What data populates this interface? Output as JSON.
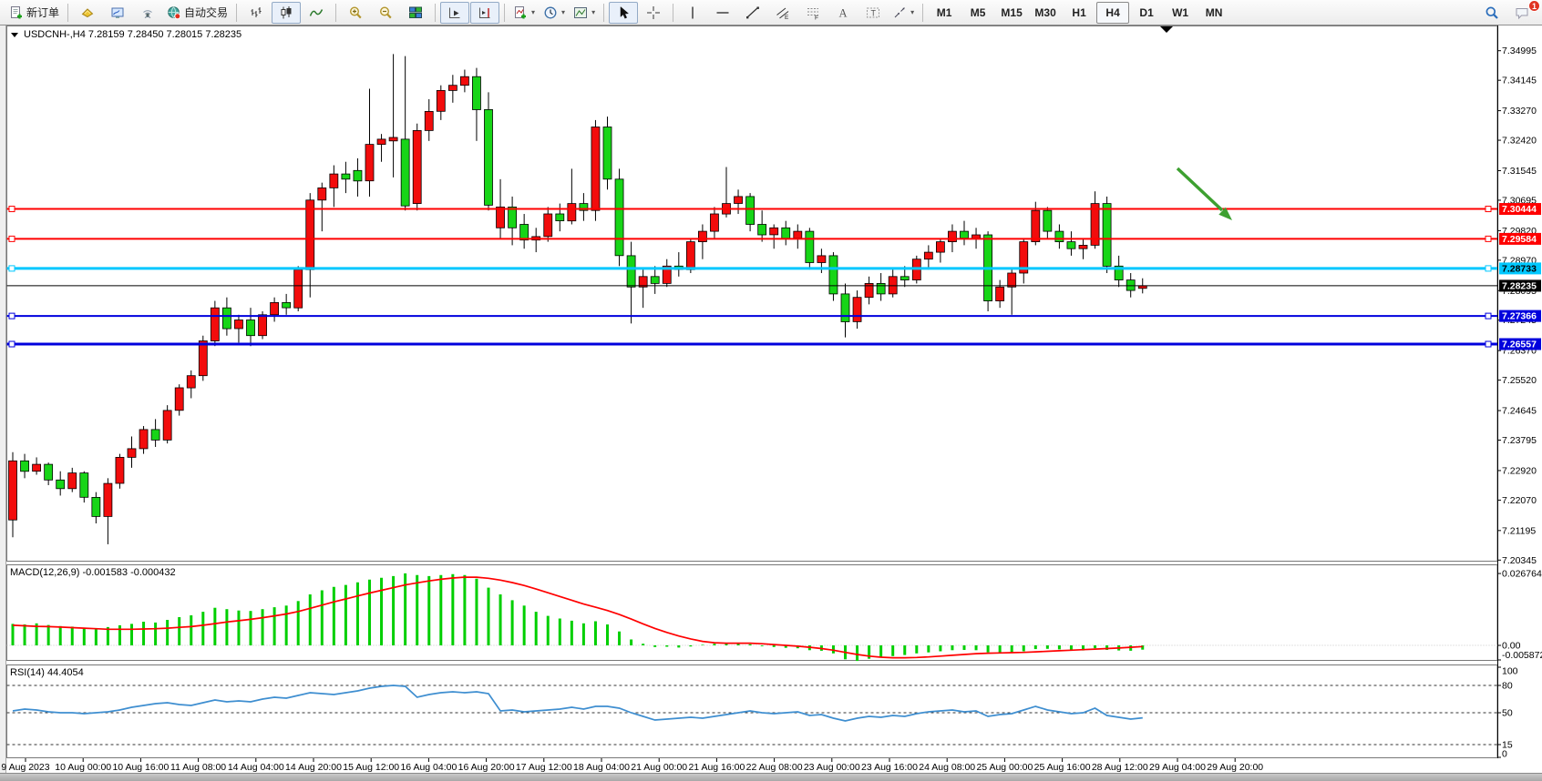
{
  "toolbar": {
    "items": [
      {
        "name": "new-order-button",
        "glyph": "new-order",
        "label": "新订单"
      },
      {
        "sep": true
      },
      {
        "name": "new-chart-button",
        "glyph": "gold"
      },
      {
        "name": "market-watch-button",
        "glyph": "monitor"
      },
      {
        "name": "signals-button",
        "glyph": "signal"
      },
      {
        "name": "autotrading-button",
        "glyph": "globe",
        "label": "自动交易"
      },
      {
        "sep": true
      },
      {
        "name": "bar-chart-button",
        "glyph": "bars"
      },
      {
        "name": "candlestick-chart-button",
        "glyph": "candles",
        "active": true
      },
      {
        "name": "line-chart-button",
        "glyph": "linechart"
      },
      {
        "sep": true
      },
      {
        "name": "zoom-in-button",
        "glyph": "zoom-in"
      },
      {
        "name": "zoom-out-button",
        "glyph": "zoom-out"
      },
      {
        "name": "tile-windows-button",
        "glyph": "tiles"
      },
      {
        "sep": true
      },
      {
        "name": "auto-scroll-button",
        "glyph": "autoscroll",
        "active": true
      },
      {
        "name": "chart-shift-button",
        "glyph": "chartshift",
        "active": true
      },
      {
        "sep": true
      },
      {
        "name": "indicators-button",
        "glyph": "indicator",
        "dropdown": true
      },
      {
        "name": "periods-button",
        "glyph": "clock",
        "dropdown": true
      },
      {
        "name": "templates-button",
        "glyph": "template",
        "dropdown": true
      },
      {
        "sep": true
      },
      {
        "name": "cursor-button",
        "glyph": "cursor",
        "active": true
      },
      {
        "name": "crosshair-button",
        "glyph": "crosshair"
      },
      {
        "sep": true
      },
      {
        "name": "vertical-line-button",
        "glyph": "vline"
      },
      {
        "name": "horizontal-line-button",
        "glyph": "hline"
      },
      {
        "name": "trendline-button",
        "glyph": "trendline"
      },
      {
        "name": "equidistant-channel-button",
        "glyph": "channel"
      },
      {
        "name": "fibonacci-button",
        "glyph": "fibo"
      },
      {
        "name": "text-button",
        "glyph": "textA"
      },
      {
        "name": "text-label-button",
        "glyph": "textT"
      },
      {
        "name": "arrows-button",
        "glyph": "arrows",
        "dropdown": true
      },
      {
        "sep": true
      },
      {
        "name": "timeframe-M1",
        "label": "M1",
        "tf": true
      },
      {
        "name": "timeframe-M5",
        "label": "M5",
        "tf": true
      },
      {
        "name": "timeframe-M15",
        "label": "M15",
        "tf": true
      },
      {
        "name": "timeframe-M30",
        "label": "M30",
        "tf": true
      },
      {
        "name": "timeframe-H1",
        "label": "H1",
        "tf": true
      },
      {
        "name": "timeframe-H4",
        "label": "H4",
        "tf": true,
        "active": true
      },
      {
        "name": "timeframe-D1",
        "label": "D1",
        "tf": true
      },
      {
        "name": "timeframe-W1",
        "label": "W1",
        "tf": true
      },
      {
        "name": "timeframe-MN",
        "label": "MN",
        "tf": true
      },
      {
        "spacer": true
      },
      {
        "name": "search-button",
        "glyph": "search"
      },
      {
        "name": "notifications-button",
        "glyph": "chat",
        "badge": "1"
      }
    ]
  },
  "chart_header": {
    "text": "USDCNH-,H4  7.28159 7.28450 7.28015 7.28235"
  },
  "chart_data": [
    {
      "type": "candlestick",
      "title": "USDCNH-,H4",
      "open": "7.28159",
      "high": "7.28450",
      "low": "7.28015",
      "close": "7.28235",
      "bull_color": "#f20c0c",
      "bear_color": "#17d517",
      "arrow": {
        "color": "#3da030",
        "direction": "down-right"
      },
      "y_ticks": [
        "7.34995",
        "7.34145",
        "7.33270",
        "7.32420",
        "7.31545",
        "7.30695",
        "7.29820",
        "7.28970",
        "7.28095",
        "7.27245",
        "7.26370",
        "7.25520",
        "7.24645",
        "7.23795",
        "7.22920",
        "7.22070",
        "7.21195",
        "7.20345"
      ],
      "x_labels": [
        "9 Aug 2023",
        "10 Aug 00:00",
        "10 Aug 16:00",
        "11 Aug 08:00",
        "14 Aug 04:00",
        "14 Aug 20:00",
        "15 Aug 12:00",
        "16 Aug 04:00",
        "16 Aug 20:00",
        "17 Aug 12:00",
        "18 Aug 04:00",
        "21 Aug 00:00",
        "21 Aug 16:00",
        "22 Aug 08:00",
        "23 Aug 00:00",
        "23 Aug 16:00",
        "24 Aug 08:00",
        "25 Aug 00:00",
        "25 Aug 16:00",
        "28 Aug 12:00",
        "29 Aug 04:00",
        "29 Aug 20:00"
      ],
      "hlines": [
        {
          "label": "7.30444",
          "value": 7.30444,
          "color": "#ff0000",
          "text_color": "#ffffff",
          "width": 2
        },
        {
          "label": "7.29584",
          "value": 7.29584,
          "color": "#ff0000",
          "text_color": "#ffffff",
          "width": 2
        },
        {
          "label": "7.28733",
          "value": 7.28733,
          "color": "#00c8ff",
          "text_color": "#000000",
          "width": 3
        },
        {
          "label": "7.28235",
          "value": 7.28235,
          "color": "#000000",
          "text_color": "#ffffff",
          "width": 1,
          "is_price": true
        },
        {
          "label": "7.27366",
          "value": 7.27366,
          "color": "#0000dd",
          "text_color": "#ffffff",
          "width": 2
        },
        {
          "label": "7.26557",
          "value": 7.26557,
          "color": "#0000dd",
          "text_color": "#ffffff",
          "width": 3
        }
      ],
      "candles": [
        [
          7.215,
          7.2345,
          7.21,
          7.232
        ],
        [
          7.232,
          7.234,
          7.227,
          7.229
        ],
        [
          7.229,
          7.233,
          7.228,
          7.231
        ],
        [
          7.231,
          7.2315,
          7.225,
          7.2265
        ],
        [
          7.2265,
          7.229,
          7.222,
          7.224
        ],
        [
          7.224,
          7.23,
          7.223,
          7.2285
        ],
        [
          7.2285,
          7.229,
          7.22,
          7.2215
        ],
        [
          7.2215,
          7.223,
          7.214,
          7.216
        ],
        [
          7.216,
          7.227,
          7.208,
          7.2255
        ],
        [
          7.2255,
          7.234,
          7.224,
          7.233
        ],
        [
          7.233,
          7.239,
          7.23,
          7.2355
        ],
        [
          7.2355,
          7.242,
          7.234,
          7.241
        ],
        [
          7.241,
          7.244,
          7.236,
          7.238
        ],
        [
          7.238,
          7.248,
          7.237,
          7.2465
        ],
        [
          7.2465,
          7.254,
          7.245,
          7.253
        ],
        [
          7.253,
          7.258,
          7.25,
          7.2565
        ],
        [
          7.2565,
          7.268,
          7.255,
          7.2665
        ],
        [
          7.2665,
          7.278,
          7.265,
          7.276
        ],
        [
          7.276,
          7.279,
          7.268,
          7.27
        ],
        [
          7.27,
          7.274,
          7.266,
          7.2725
        ],
        [
          7.2725,
          7.276,
          7.265,
          7.268
        ],
        [
          7.268,
          7.275,
          7.267,
          7.274
        ],
        [
          7.274,
          7.279,
          7.272,
          7.2775
        ],
        [
          7.2775,
          7.28,
          7.274,
          7.276
        ],
        [
          7.276,
          7.288,
          7.275,
          7.287
        ],
        [
          7.287,
          7.309,
          7.279,
          7.307
        ],
        [
          7.307,
          7.312,
          7.298,
          7.3105
        ],
        [
          7.3105,
          7.317,
          7.305,
          7.3145
        ],
        [
          7.3145,
          7.318,
          7.309,
          7.313
        ],
        [
          7.3155,
          7.319,
          7.308,
          7.3125
        ],
        [
          7.3125,
          7.339,
          7.308,
          7.323
        ],
        [
          7.323,
          7.326,
          7.318,
          7.3245
        ],
        [
          7.324,
          7.349,
          7.3135,
          7.325
        ],
        [
          7.3245,
          7.3484,
          7.304,
          7.3053
        ],
        [
          7.306,
          7.329,
          7.304,
          7.327
        ],
        [
          7.327,
          7.336,
          7.324,
          7.3325
        ],
        [
          7.3325,
          7.34,
          7.33,
          7.3385
        ],
        [
          7.3385,
          7.343,
          7.335,
          7.34
        ],
        [
          7.34,
          7.3445,
          7.338,
          7.3425
        ],
        [
          7.3425,
          7.345,
          7.324,
          7.333
        ],
        [
          7.333,
          7.338,
          7.304,
          7.3055
        ],
        [
          7.299,
          7.313,
          7.296,
          7.305
        ],
        [
          7.305,
          7.308,
          7.294,
          7.299
        ],
        [
          7.3,
          7.303,
          7.293,
          7.2955
        ],
        [
          7.2955,
          7.299,
          7.292,
          7.2965
        ],
        [
          7.2965,
          7.305,
          7.295,
          7.303
        ],
        [
          7.303,
          7.306,
          7.298,
          7.301
        ],
        [
          7.301,
          7.316,
          7.3,
          7.306
        ],
        [
          7.306,
          7.309,
          7.301,
          7.304
        ],
        [
          7.304,
          7.33,
          7.301,
          7.328
        ],
        [
          7.328,
          7.331,
          7.31,
          7.313
        ],
        [
          7.313,
          7.316,
          7.288,
          7.291
        ],
        [
          7.291,
          7.295,
          7.2715,
          7.282
        ],
        [
          7.282,
          7.287,
          7.276,
          7.285
        ],
        [
          7.285,
          7.288,
          7.28,
          7.283
        ],
        [
          7.283,
          7.29,
          7.282,
          7.288
        ],
        [
          7.288,
          7.292,
          7.285,
          7.287
        ],
        [
          7.287,
          7.296,
          7.286,
          7.295
        ],
        [
          7.295,
          7.3,
          7.29,
          7.298
        ],
        [
          7.298,
          7.305,
          7.296,
          7.303
        ],
        [
          7.303,
          7.3165,
          7.302,
          7.306
        ],
        [
          7.306,
          7.31,
          7.303,
          7.308
        ],
        [
          7.308,
          7.309,
          7.298,
          7.3
        ],
        [
          7.3,
          7.304,
          7.295,
          7.297
        ],
        [
          7.297,
          7.3,
          7.293,
          7.299
        ],
        [
          7.299,
          7.301,
          7.294,
          7.296
        ],
        [
          7.296,
          7.3,
          7.293,
          7.298
        ],
        [
          7.298,
          7.299,
          7.287,
          7.289
        ],
        [
          7.289,
          7.293,
          7.286,
          7.291
        ],
        [
          7.291,
          7.292,
          7.278,
          7.28
        ],
        [
          7.28,
          7.283,
          7.2675,
          7.272
        ],
        [
          7.272,
          7.281,
          7.27,
          7.279
        ],
        [
          7.279,
          7.285,
          7.277,
          7.283
        ],
        [
          7.283,
          7.286,
          7.278,
          7.28
        ],
        [
          7.28,
          7.287,
          7.279,
          7.285
        ],
        [
          7.285,
          7.288,
          7.282,
          7.284
        ],
        [
          7.284,
          7.291,
          7.283,
          7.29
        ],
        [
          7.29,
          7.294,
          7.287,
          7.292
        ],
        [
          7.292,
          7.296,
          7.289,
          7.295
        ],
        [
          7.295,
          7.3,
          7.292,
          7.298
        ],
        [
          7.298,
          7.301,
          7.294,
          7.296
        ],
        [
          7.296,
          7.299,
          7.293,
          7.297
        ],
        [
          7.297,
          7.298,
          7.275,
          7.278
        ],
        [
          7.278,
          7.284,
          7.276,
          7.282
        ],
        [
          7.282,
          7.287,
          7.274,
          7.286
        ],
        [
          7.286,
          7.296,
          7.283,
          7.295
        ],
        [
          7.295,
          7.3065,
          7.294,
          7.304
        ],
        [
          7.304,
          7.305,
          7.296,
          7.298
        ],
        [
          7.298,
          7.3,
          7.293,
          7.295
        ],
        [
          7.295,
          7.298,
          7.291,
          7.293
        ],
        [
          7.293,
          7.296,
          7.29,
          7.294
        ],
        [
          7.294,
          7.3095,
          7.293,
          7.306
        ],
        [
          7.306,
          7.308,
          7.286,
          7.288
        ],
        [
          7.288,
          7.291,
          7.282,
          7.284
        ],
        [
          7.284,
          7.286,
          7.279,
          7.281
        ],
        [
          7.28159,
          7.2845,
          7.28015,
          7.28235
        ]
      ]
    },
    {
      "type": "bar",
      "name": "MACD",
      "label": "MACD(12,26,9) -0.001583 -0.000432",
      "current_value": -0.001583,
      "current_signal": -0.000432,
      "bar_color": "#00cf00",
      "signal_color": "#ff0000",
      "y_ticks": [
        "0.026764",
        "0.00",
        "-0.005872"
      ],
      "values": [
        0.008,
        0.0078,
        0.0082,
        0.0076,
        0.0072,
        0.007,
        0.0065,
        0.006,
        0.0068,
        0.0075,
        0.008,
        0.0088,
        0.0085,
        0.0095,
        0.0105,
        0.0112,
        0.0125,
        0.014,
        0.0135,
        0.013,
        0.0128,
        0.0135,
        0.0142,
        0.0148,
        0.0165,
        0.019,
        0.0205,
        0.0218,
        0.0225,
        0.0235,
        0.0245,
        0.0252,
        0.0258,
        0.0268,
        0.0262,
        0.0258,
        0.0262,
        0.0265,
        0.0262,
        0.0248,
        0.0215,
        0.019,
        0.0168,
        0.0148,
        0.0125,
        0.011,
        0.01,
        0.0092,
        0.0082,
        0.009,
        0.0078,
        0.0052,
        0.0022,
        0.0006,
        -0.0006,
        -0.0005,
        -0.0008,
        -0.0004,
        0.0002,
        0.0006,
        0.001,
        0.0009,
        0.0004,
        -0.0003,
        -0.0006,
        -0.0009,
        -0.0011,
        -0.0018,
        -0.002,
        -0.003,
        -0.0052,
        -0.0058,
        -0.005,
        -0.0044,
        -0.004,
        -0.0036,
        -0.003,
        -0.0026,
        -0.0022,
        -0.0018,
        -0.0017,
        -0.0018,
        -0.0026,
        -0.0027,
        -0.0028,
        -0.0022,
        -0.0014,
        -0.0013,
        -0.0015,
        -0.0018,
        -0.0019,
        -0.0011,
        -0.0017,
        -0.0019,
        -0.002,
        -0.001583
      ],
      "signal": [
        0.0075,
        0.0073,
        0.0071,
        0.007,
        0.0068,
        0.0066,
        0.0064,
        0.0062,
        0.006,
        0.006,
        0.006,
        0.0061,
        0.0062,
        0.0064,
        0.0067,
        0.007,
        0.0075,
        0.0081,
        0.0087,
        0.0092,
        0.0097,
        0.0103,
        0.011,
        0.0117,
        0.0126,
        0.0138,
        0.015,
        0.0162,
        0.0173,
        0.0184,
        0.0195,
        0.0205,
        0.0215,
        0.0225,
        0.0233,
        0.024,
        0.0246,
        0.0251,
        0.0254,
        0.0254,
        0.025,
        0.0243,
        0.0234,
        0.0223,
        0.021,
        0.0196,
        0.0182,
        0.0168,
        0.0154,
        0.0142,
        0.013,
        0.0115,
        0.0098,
        0.008,
        0.0063,
        0.0048,
        0.0035,
        0.0024,
        0.0015,
        0.001,
        0.0008,
        0.0008,
        0.0008,
        0.0006,
        0.0003,
        0.0,
        -0.0003,
        -0.0007,
        -0.0012,
        -0.0018,
        -0.0026,
        -0.0034,
        -0.004,
        -0.0044,
        -0.0046,
        -0.0046,
        -0.0045,
        -0.0043,
        -0.004,
        -0.0037,
        -0.0034,
        -0.0031,
        -0.0029,
        -0.0028,
        -0.0027,
        -0.0026,
        -0.0024,
        -0.0022,
        -0.002,
        -0.0018,
        -0.0016,
        -0.0014,
        -0.0012,
        -0.001,
        -0.0007,
        -0.000432
      ]
    },
    {
      "type": "line",
      "name": "RSI",
      "label": "RSI(14) 44.4054",
      "current_value": 44.4054,
      "line_color": "#3e8ed0",
      "levels": [
        80,
        50,
        15
      ],
      "ylim": [
        0,
        100
      ],
      "y_ticks": [
        "100",
        "80",
        "50",
        "15",
        "0"
      ],
      "values": [
        52,
        54,
        53,
        51,
        50,
        50,
        49,
        50,
        51,
        53,
        56,
        58,
        60,
        61,
        59,
        58,
        61,
        64,
        62,
        63,
        62,
        65,
        67,
        66,
        69,
        72,
        71,
        70,
        72,
        74,
        77,
        79,
        80,
        79,
        67,
        70,
        72,
        73,
        72,
        73,
        71,
        52,
        53,
        51,
        52,
        53,
        54,
        56,
        54,
        57,
        57,
        55,
        50,
        46,
        42,
        43,
        44,
        45,
        44,
        46,
        48,
        50,
        52,
        50,
        49,
        50,
        51,
        47,
        48,
        44,
        41,
        44,
        46,
        45,
        47,
        46,
        49,
        51,
        52,
        53,
        51,
        52,
        46,
        48,
        49,
        53,
        57,
        53,
        51,
        49,
        50,
        55,
        47,
        45,
        43,
        44.4054
      ]
    }
  ]
}
